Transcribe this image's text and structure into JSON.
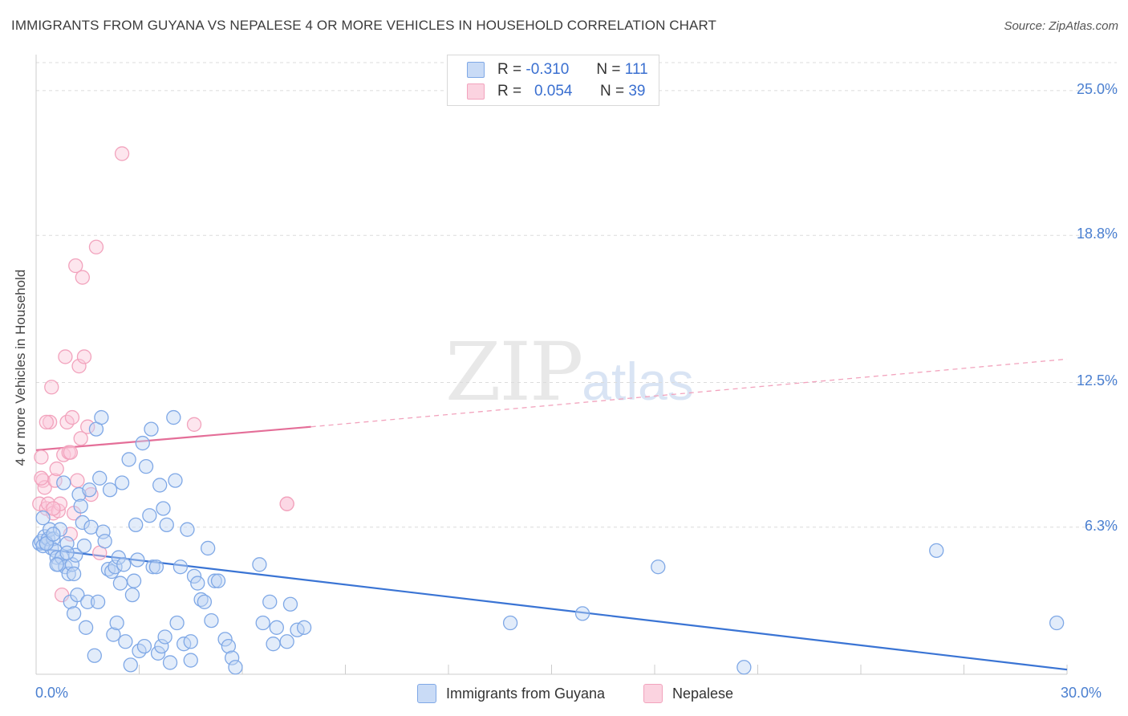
{
  "header": {
    "title": "IMMIGRANTS FROM GUYANA VS NEPALESE 4 OR MORE VEHICLES IN HOUSEHOLD CORRELATION CHART",
    "source": "Source: ZipAtlas.com"
  },
  "watermark": {
    "zip": "ZIP",
    "atlas": "atlas"
  },
  "legend": {
    "rows": [
      {
        "r_label": "R =",
        "r_value": "-0.310",
        "n_label": "N =",
        "n_value": "111"
      },
      {
        "r_label": "R =",
        "r_value": "0.054",
        "n_label": "N =",
        "n_value": "39"
      }
    ]
  },
  "bottom_legend": {
    "guyana": "Immigrants from Guyana",
    "nepalese": "Nepalese"
  },
  "chart_data": {
    "type": "scatter",
    "title": "IMMIGRANTS FROM GUYANA VS NEPALESE 4 OR MORE VEHICLES IN HOUSEHOLD CORRELATION CHART",
    "xlabel": "",
    "ylabel": "4 or more Vehicles in Household",
    "xlim": [
      0,
      30
    ],
    "ylim": [
      0,
      26.2
    ],
    "x_tick_labels": [
      "0.0%",
      "30.0%"
    ],
    "y_ticks": [
      6.3,
      12.5,
      18.8,
      25.0
    ],
    "y_tick_labels": [
      "6.3%",
      "12.5%",
      "18.8%",
      "25.0%"
    ],
    "colors": {
      "guyana": "#7fa8e6",
      "guyana_line": "#3a74d4",
      "nepalese": "#f2a3bd",
      "nepalese_line": "#e46e98",
      "tick_text": "#4a7fd0"
    },
    "series": [
      {
        "name": "Immigrants from Guyana",
        "r": -0.31,
        "n": 111,
        "trend": {
          "x": [
            0,
            30
          ],
          "y": [
            5.4,
            0.2
          ]
        },
        "points": [
          [
            0.1,
            5.6
          ],
          [
            0.15,
            5.7
          ],
          [
            0.2,
            5.5
          ],
          [
            0.25,
            5.9
          ],
          [
            0.3,
            5.6
          ],
          [
            0.35,
            5.8
          ],
          [
            0.4,
            6.2
          ],
          [
            0.45,
            5.4
          ],
          [
            0.5,
            5.8
          ],
          [
            0.55,
            5.3
          ],
          [
            0.6,
            5.0
          ],
          [
            0.65,
            4.7
          ],
          [
            0.7,
            6.2
          ],
          [
            0.75,
            5.0
          ],
          [
            0.8,
            8.2
          ],
          [
            0.85,
            4.6
          ],
          [
            0.9,
            5.6
          ],
          [
            0.95,
            4.3
          ],
          [
            1.0,
            3.1
          ],
          [
            1.05,
            4.7
          ],
          [
            1.1,
            4.3
          ],
          [
            1.15,
            5.1
          ],
          [
            1.2,
            3.4
          ],
          [
            1.25,
            7.7
          ],
          [
            1.3,
            7.2
          ],
          [
            1.35,
            6.5
          ],
          [
            1.4,
            5.5
          ],
          [
            1.45,
            2.0
          ],
          [
            1.5,
            3.1
          ],
          [
            1.55,
            7.9
          ],
          [
            1.6,
            6.3
          ],
          [
            1.7,
            0.8
          ],
          [
            1.75,
            10.5
          ],
          [
            1.8,
            3.1
          ],
          [
            1.85,
            8.4
          ],
          [
            1.9,
            11.0
          ],
          [
            1.95,
            6.1
          ],
          [
            2.0,
            5.7
          ],
          [
            2.1,
            4.5
          ],
          [
            2.15,
            7.9
          ],
          [
            2.2,
            4.4
          ],
          [
            2.25,
            1.7
          ],
          [
            2.3,
            4.6
          ],
          [
            2.35,
            2.2
          ],
          [
            2.4,
            5.0
          ],
          [
            2.45,
            3.9
          ],
          [
            2.5,
            8.2
          ],
          [
            2.55,
            4.7
          ],
          [
            2.6,
            1.4
          ],
          [
            2.7,
            9.2
          ],
          [
            2.75,
            0.4
          ],
          [
            2.8,
            3.4
          ],
          [
            2.85,
            4.0
          ],
          [
            2.9,
            6.4
          ],
          [
            2.95,
            4.9
          ],
          [
            3.0,
            1.0
          ],
          [
            3.1,
            9.9
          ],
          [
            3.15,
            1.2
          ],
          [
            3.2,
            8.9
          ],
          [
            3.3,
            6.8
          ],
          [
            3.35,
            10.5
          ],
          [
            3.4,
            4.6
          ],
          [
            3.5,
            4.6
          ],
          [
            3.55,
            0.9
          ],
          [
            3.6,
            8.1
          ],
          [
            3.65,
            1.2
          ],
          [
            3.7,
            7.1
          ],
          [
            3.75,
            1.6
          ],
          [
            3.8,
            6.4
          ],
          [
            3.9,
            0.5
          ],
          [
            4.0,
            11.0
          ],
          [
            4.05,
            8.3
          ],
          [
            4.1,
            2.2
          ],
          [
            4.2,
            4.6
          ],
          [
            4.3,
            1.3
          ],
          [
            4.4,
            6.2
          ],
          [
            4.5,
            1.4
          ],
          [
            4.5,
            0.6
          ],
          [
            4.6,
            4.2
          ],
          [
            4.7,
            3.9
          ],
          [
            4.8,
            3.2
          ],
          [
            4.9,
            3.1
          ],
          [
            5.0,
            5.4
          ],
          [
            5.1,
            2.3
          ],
          [
            5.2,
            4.0
          ],
          [
            5.3,
            4.0
          ],
          [
            5.5,
            1.5
          ],
          [
            5.6,
            1.2
          ],
          [
            5.7,
            0.7
          ],
          [
            5.8,
            0.3
          ],
          [
            6.5,
            4.7
          ],
          [
            6.6,
            2.2
          ],
          [
            6.8,
            3.1
          ],
          [
            6.9,
            1.3
          ],
          [
            7.0,
            2.0
          ],
          [
            7.3,
            1.4
          ],
          [
            7.4,
            3.0
          ],
          [
            7.6,
            1.9
          ],
          [
            7.8,
            2.0
          ],
          [
            13.8,
            2.2
          ],
          [
            15.9,
            2.6
          ],
          [
            18.1,
            4.6
          ],
          [
            20.6,
            0.3
          ],
          [
            26.2,
            5.3
          ],
          [
            29.7,
            2.2
          ],
          [
            0.2,
            6.7
          ],
          [
            0.6,
            4.7
          ],
          [
            1.1,
            2.6
          ],
          [
            0.3,
            5.6
          ],
          [
            0.5,
            6.0
          ],
          [
            0.9,
            5.2
          ]
        ]
      },
      {
        "name": "Nepalese",
        "r": 0.054,
        "n": 39,
        "trend": {
          "x": [
            0,
            8.0
          ],
          "y": [
            9.6,
            10.6
          ]
        },
        "trend_dashed": {
          "x": [
            8.0,
            30
          ],
          "y": [
            10.6,
            13.5
          ]
        },
        "points": [
          [
            0.1,
            7.3
          ],
          [
            0.15,
            9.3
          ],
          [
            0.2,
            8.3
          ],
          [
            0.25,
            8.0
          ],
          [
            0.3,
            7.1
          ],
          [
            0.35,
            7.3
          ],
          [
            0.4,
            10.8
          ],
          [
            0.45,
            12.3
          ],
          [
            0.5,
            6.9
          ],
          [
            0.55,
            8.3
          ],
          [
            0.6,
            8.8
          ],
          [
            0.65,
            7.0
          ],
          [
            0.7,
            7.3
          ],
          [
            0.75,
            3.4
          ],
          [
            0.8,
            9.4
          ],
          [
            0.85,
            13.6
          ],
          [
            0.9,
            10.8
          ],
          [
            0.95,
            9.5
          ],
          [
            1.0,
            6.0
          ],
          [
            1.05,
            11.0
          ],
          [
            1.1,
            6.9
          ],
          [
            1.15,
            17.5
          ],
          [
            1.2,
            8.3
          ],
          [
            1.25,
            13.2
          ],
          [
            1.3,
            10.1
          ],
          [
            1.35,
            17.0
          ],
          [
            1.4,
            13.6
          ],
          [
            1.5,
            10.6
          ],
          [
            1.6,
            7.7
          ],
          [
            1.75,
            18.3
          ],
          [
            1.85,
            5.2
          ],
          [
            2.5,
            22.3
          ],
          [
            4.6,
            10.7
          ],
          [
            7.3,
            7.3
          ],
          [
            0.3,
            10.8
          ],
          [
            0.5,
            7.1
          ],
          [
            1.0,
            9.5
          ],
          [
            0.15,
            8.4
          ],
          [
            7.3,
            7.3
          ]
        ]
      }
    ]
  }
}
